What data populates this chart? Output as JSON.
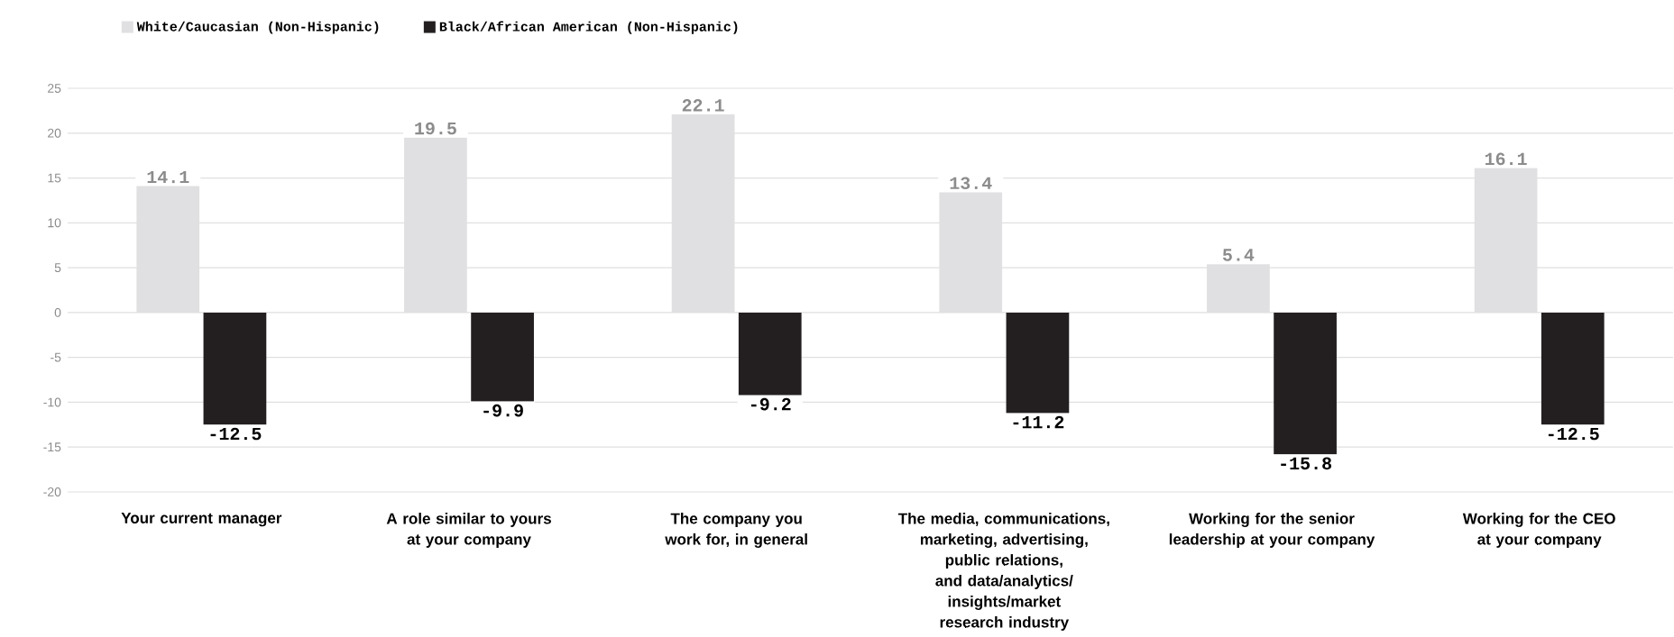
{
  "chart_data": {
    "type": "bar",
    "categories": [
      "Your current manager",
      "A role similar to yours at your company",
      "The company you work for, in general",
      "The media, communications, marketing, advertising, public relations, and data/analytics/ insights/market research industry",
      "Working for the senior leadership at your company",
      "Working for the CEO at your company"
    ],
    "series": [
      {
        "name": "White/Caucasian (Non-Hispanic)",
        "color": "#e0e0e2",
        "values": [
          14.1,
          19.5,
          22.1,
          13.4,
          5.4,
          16.1
        ]
      },
      {
        "name": "Black/African American (Non-Hispanic)",
        "color": "#231f20",
        "values": [
          -12.5,
          -9.9,
          -9.2,
          -11.2,
          -15.8,
          -12.5
        ]
      }
    ],
    "ylim": [
      -20,
      25
    ],
    "yticks": [
      -20,
      -15,
      -10,
      -5,
      0,
      5,
      10,
      15,
      20,
      25
    ],
    "grid": "y",
    "legend": "top left",
    "data_labels": true
  }
}
